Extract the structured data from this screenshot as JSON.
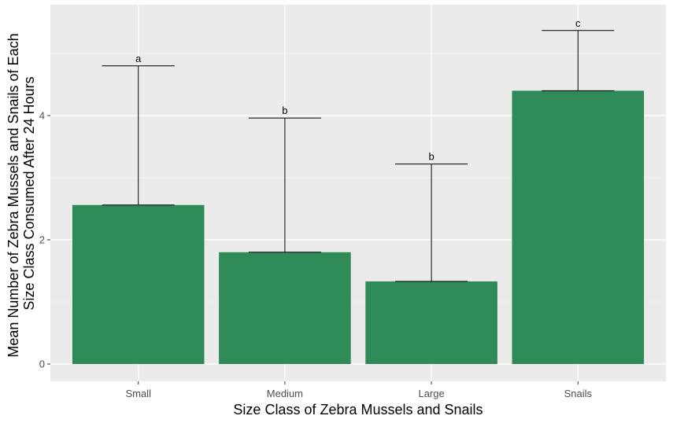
{
  "chart_data": {
    "type": "bar",
    "title": "",
    "xlabel": "Size Class of Zebra Mussels and Snails",
    "ylabel_lines": [
      "Mean Number of Zebra Mussels and Snails of Each",
      "Size Class Consumed After 24 Hours"
    ],
    "categories": [
      "Small",
      "Medium",
      "Large",
      "Snails"
    ],
    "values": [
      2.56,
      1.8,
      1.33,
      4.4
    ],
    "error_upper": [
      4.8,
      3.96,
      3.22,
      5.37
    ],
    "sig_labels": [
      "a",
      "b",
      "b",
      "c"
    ],
    "y_ticks": [
      0,
      2,
      4
    ],
    "y_tick_labels": [
      "0",
      "2",
      "4"
    ],
    "ylim": [
      -0.28,
      5.8
    ],
    "grid": true,
    "colors": {
      "bar": "#2e8b57",
      "panel": "#ebebeb",
      "grid_major": "#ffffff",
      "errorbar": "#000000"
    }
  }
}
